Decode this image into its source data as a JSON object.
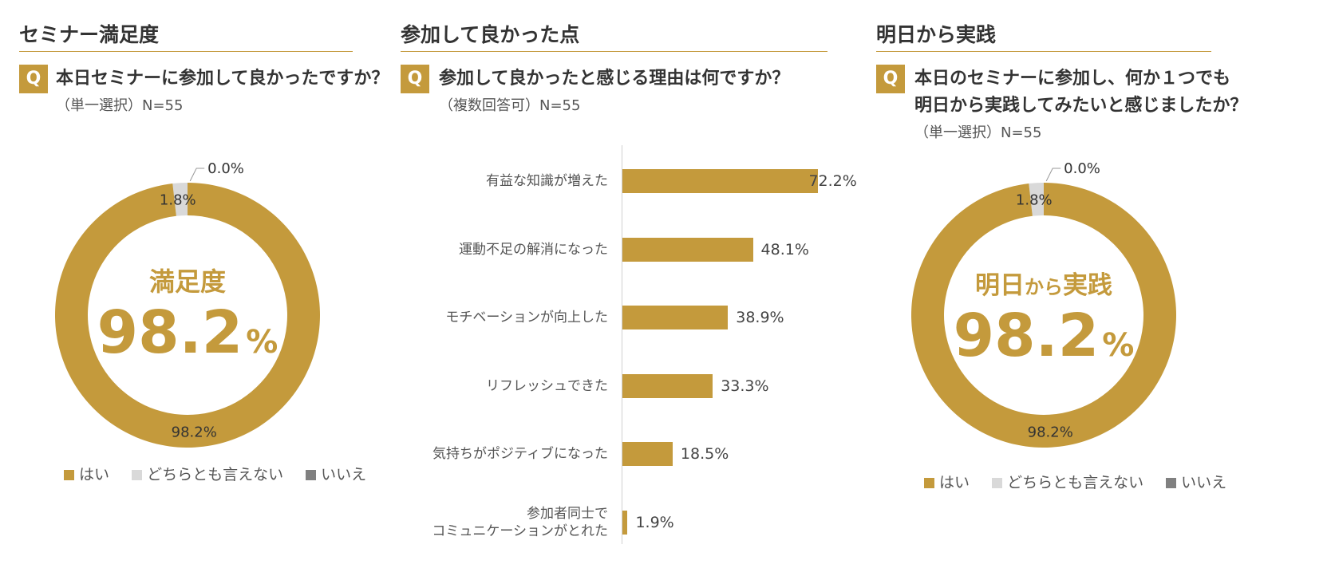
{
  "colors": {
    "accent": "#c49a3c",
    "neutral": "#d9d9d9",
    "no": "#808080"
  },
  "panels": [
    {
      "title": "セミナー満足度",
      "q_badge": "Q",
      "question_lines": [
        "本日セミナーに参加して良かったですか？"
      ],
      "note": "（単一選択）N=55",
      "center_label": "満足度",
      "center_value": "98.2",
      "center_unit": "%"
    },
    {
      "title": "参加して良かった点",
      "q_badge": "Q",
      "question_lines": [
        "参加して良かったと感じる理由は何ですか？"
      ],
      "note": "（複数回答可）N=55"
    },
    {
      "title": "明日から実践",
      "q_badge": "Q",
      "question_lines": [
        "本日のセミナーに参加し、何か１つでも",
        "明日から実践してみたいと感じましたか？"
      ],
      "note": "（単一選択）N=55",
      "center_label_a": "明日",
      "center_label_b": "から",
      "center_label_c": "実践",
      "center_value": "98.2",
      "center_unit": "%"
    }
  ],
  "chart_data": [
    {
      "type": "pie",
      "categories": [
        "はい",
        "どちらとも言えない",
        "いいえ"
      ],
      "values": [
        98.2,
        1.8,
        0.0
      ],
      "data_labels": [
        "98.2%",
        "1.8%",
        "0.0%"
      ],
      "legend": "bottom"
    },
    {
      "type": "bar",
      "orientation": "horizontal",
      "categories": [
        "有益な知識が増えた",
        "運動不足の解消になった",
        "モチベーションが向上した",
        "リフレッシュできた",
        "気持ちがポジティブになった",
        "参加者同士で\nコミュニケーションがとれた"
      ],
      "values": [
        72.2,
        48.1,
        38.9,
        33.3,
        18.5,
        1.9
      ],
      "data_labels": [
        "72.2%",
        "48.1%",
        "38.9%",
        "33.3%",
        "18.5%",
        "1.9%"
      ],
      "xlim": [
        0,
        100
      ],
      "grid": false
    },
    {
      "type": "pie",
      "categories": [
        "はい",
        "どちらとも言えない",
        "いいえ"
      ],
      "values": [
        98.2,
        1.8,
        0.0
      ],
      "data_labels": [
        "98.2%",
        "1.8%",
        "0.0%"
      ],
      "legend": "bottom"
    }
  ]
}
